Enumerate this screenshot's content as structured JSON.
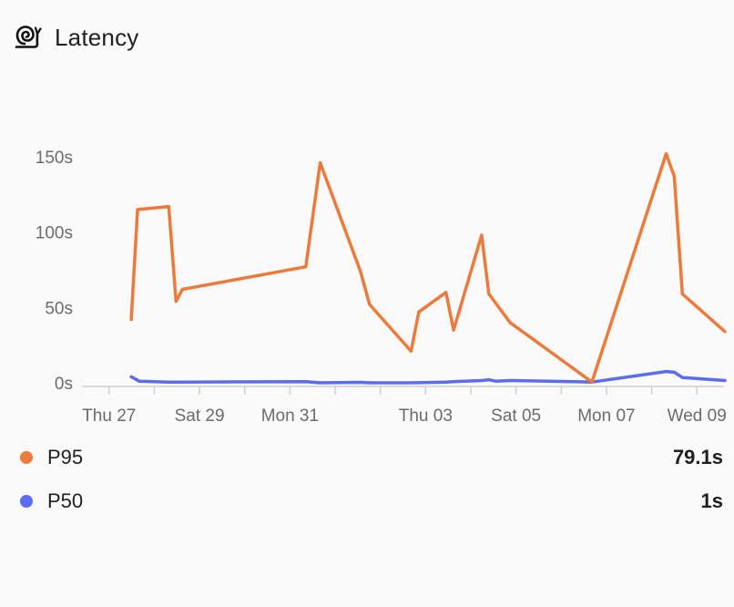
{
  "header": {
    "title": "Latency",
    "icon": "snail-icon"
  },
  "colors": {
    "p95": "#ec7a3b",
    "p50": "#5b6cf0",
    "axis": "#d0d0d0",
    "tick_text": "#6b6b6b"
  },
  "legend": {
    "items": [
      {
        "name": "P95",
        "value": "79.1s"
      },
      {
        "name": "P50",
        "value": "1s"
      }
    ]
  },
  "chart_data": {
    "type": "line",
    "x_tick_labels": [
      {
        "day": 0,
        "label": "Thu 27"
      },
      {
        "day": 2,
        "label": "Sat 29"
      },
      {
        "day": 4,
        "label": "Mon 31"
      },
      {
        "day": 7,
        "label": "Thu 03"
      },
      {
        "day": 9,
        "label": "Sat 05"
      },
      {
        "day": 11,
        "label": "Mon 07"
      },
      {
        "day": 13,
        "label": "Wed 09"
      }
    ],
    "x_minor_ticks": [
      1,
      3,
      5,
      6,
      8,
      10,
      12
    ],
    "xlim": [
      -0.6,
      13.6
    ],
    "ylim": [
      0,
      150
    ],
    "y_ticks": [
      {
        "value": 0,
        "label": "0s"
      },
      {
        "value": 50,
        "label": "50s"
      },
      {
        "value": 100,
        "label": "100s"
      },
      {
        "value": 150,
        "label": "150s"
      }
    ],
    "grid": false,
    "series": [
      {
        "name": "P95",
        "points": [
          [
            0.49,
            42
          ],
          [
            0.63,
            115
          ],
          [
            1.32,
            117
          ],
          [
            1.48,
            54
          ],
          [
            1.62,
            62
          ],
          [
            4.35,
            77
          ],
          [
            4.67,
            146
          ],
          [
            5.56,
            74
          ],
          [
            5.76,
            52
          ],
          [
            6.68,
            21
          ],
          [
            6.85,
            47
          ],
          [
            7.45,
            60
          ],
          [
            7.62,
            35
          ],
          [
            8.24,
            98
          ],
          [
            8.4,
            59
          ],
          [
            8.87,
            40
          ],
          [
            10.68,
            0.5
          ],
          [
            12.32,
            152
          ],
          [
            12.5,
            137
          ],
          [
            12.68,
            59
          ],
          [
            13.62,
            34
          ]
        ]
      },
      {
        "name": "P50",
        "points": [
          [
            0.49,
            4
          ],
          [
            0.67,
            1
          ],
          [
            1.32,
            0.5
          ],
          [
            1.62,
            0.5
          ],
          [
            4.35,
            0.8
          ],
          [
            4.67,
            0
          ],
          [
            5.56,
            0.3
          ],
          [
            5.76,
            0
          ],
          [
            6.68,
            0
          ],
          [
            7.45,
            0.5
          ],
          [
            7.62,
            0.8
          ],
          [
            8.24,
            1.5
          ],
          [
            8.4,
            2
          ],
          [
            8.56,
            1
          ],
          [
            8.87,
            1.5
          ],
          [
            10.68,
            0.5
          ],
          [
            12.32,
            7.5
          ],
          [
            12.5,
            7
          ],
          [
            12.68,
            3.5
          ],
          [
            13.62,
            1.5
          ]
        ]
      }
    ]
  }
}
